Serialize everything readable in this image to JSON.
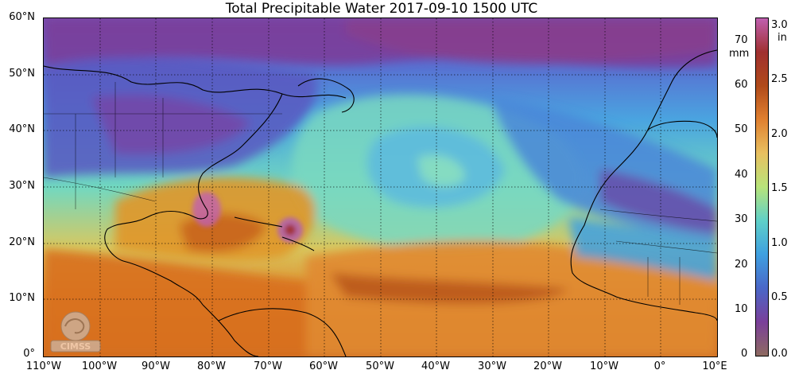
{
  "title": "Total Precipitable Water  2017-09-10 1500 UTC",
  "lat_labels": [
    "60°N",
    "50°N",
    "40°N",
    "30°N",
    "20°N",
    "10°N",
    "0°"
  ],
  "lon_labels": [
    "110°W",
    "100°W",
    "90°W",
    "80°W",
    "70°W",
    "60°W",
    "50°W",
    "40°W",
    "30°W",
    "20°W",
    "10°W",
    "0°",
    "10°E"
  ],
  "colorbar": {
    "mm_unit": "mm",
    "in_unit": "in",
    "mm_ticks": [
      "70",
      "60",
      "50",
      "40",
      "30",
      "20",
      "10",
      "0"
    ],
    "in_ticks": [
      "3.0",
      "2.5",
      "2.0",
      "1.5",
      "1.0",
      "0.5",
      "0.0"
    ],
    "colors": [
      "#8e6a60",
      "#7a3f9a",
      "#4a67c8",
      "#3fa0e0",
      "#5fd0c8",
      "#b8e47a",
      "#e8c060",
      "#e08030",
      "#b04a1a",
      "#a03030",
      "#c060b0"
    ]
  },
  "logo": {
    "text": "CIMSS"
  },
  "map_colors": {
    "north": "#6a4aa8",
    "cool": "#4a86d8",
    "mid": "#6fd2c4",
    "warm": "#e0962a",
    "hot": "#c45c1c",
    "land": "#000000"
  }
}
